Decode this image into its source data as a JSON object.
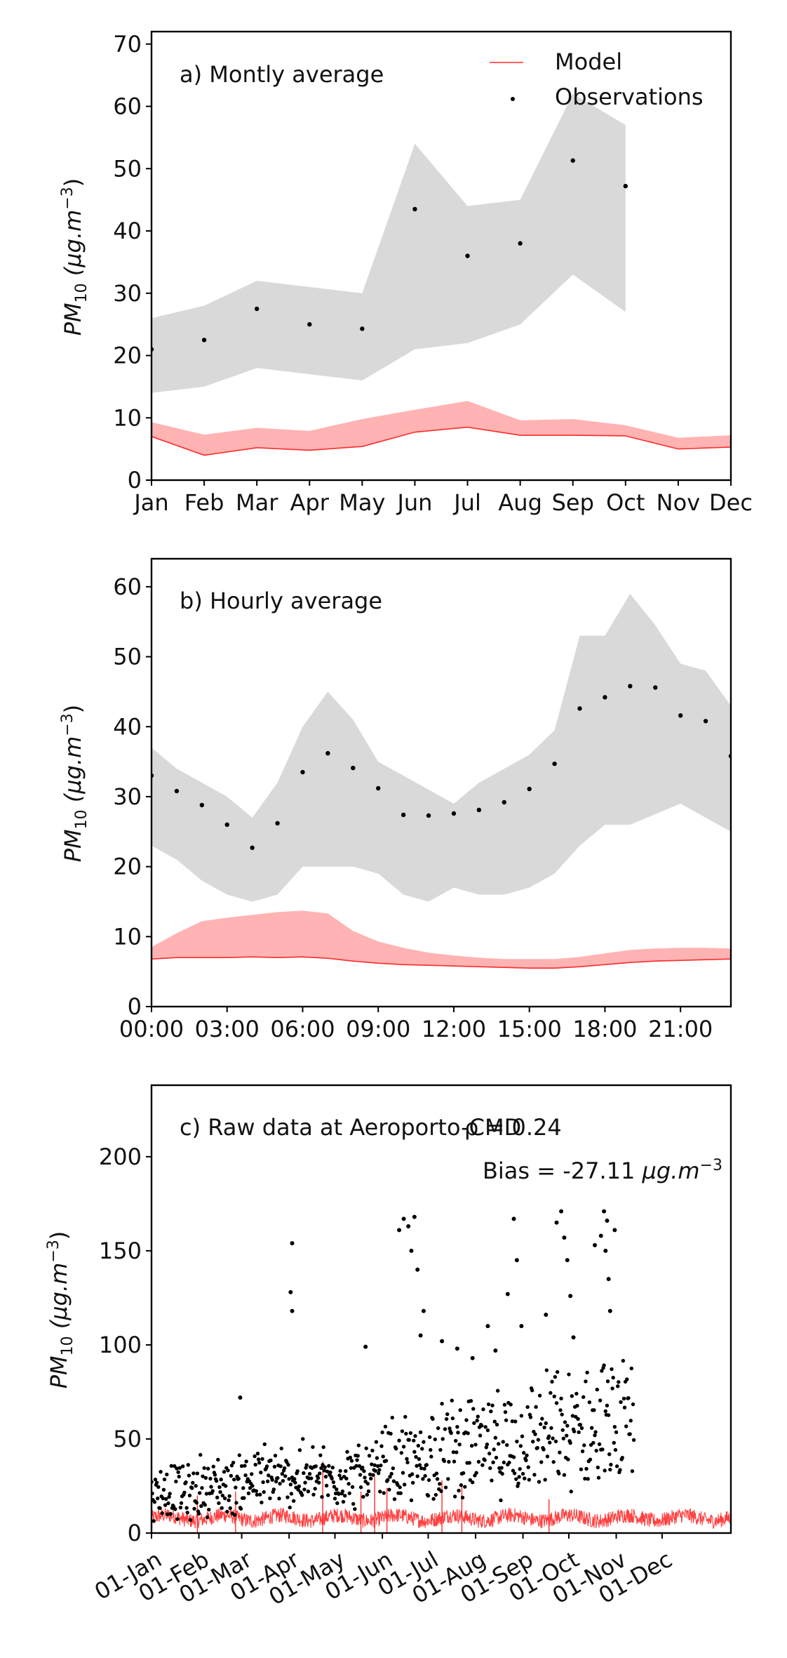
{
  "chart_data": [
    {
      "type": "line",
      "annotation": "a) Montly average",
      "ylabel_main": "PM",
      "ylabel_sub": "10",
      "ylabel_unit": " (µg.m",
      "ylabel_exp": "−3",
      "ylabel_close": ")",
      "xtick_labels": [
        "Jan",
        "Feb",
        "Mar",
        "Apr",
        "May",
        "Jun",
        "Jul",
        "Aug",
        "Sep",
        "Oct",
        "Nov",
        "Dec"
      ],
      "ylim": [
        0,
        72
      ],
      "yticks": [
        0,
        10,
        20,
        30,
        40,
        50,
        60,
        70
      ],
      "legend": {
        "model": "Model",
        "observations": "Observations",
        "placement": "top-right"
      },
      "colors": {
        "model": "#ff2b2b",
        "model_band": "#ffb3b3",
        "obs_band": "#d9d9d9",
        "obs": "#000000"
      },
      "x": [
        0,
        1,
        2,
        3,
        4,
        5,
        6,
        7,
        8,
        9,
        10,
        11
      ],
      "obs_mean": [
        21,
        22.5,
        27.5,
        25,
        24.3,
        43.5,
        36,
        38,
        51.3,
        47.2,
        null,
        null
      ],
      "obs_upper": [
        26,
        28,
        32,
        31,
        30,
        54,
        44,
        45,
        62,
        57,
        null,
        null
      ],
      "obs_lower": [
        14,
        15,
        18,
        17,
        16,
        21,
        22,
        25,
        33,
        27,
        null,
        null
      ],
      "model_mean": [
        7,
        4,
        5.2,
        4.8,
        5.4,
        7.7,
        8.5,
        7.2,
        7.2,
        7.1,
        5,
        5.3
      ],
      "model_upper": [
        9.3,
        7.3,
        8.4,
        7.9,
        9.8,
        11.3,
        12.7,
        9.6,
        9.8,
        8.8,
        6.8,
        7.2
      ]
    },
    {
      "type": "line",
      "annotation": "b) Hourly average",
      "ylabel_main": "PM",
      "ylabel_sub": "10",
      "ylabel_unit": " (µg.m",
      "ylabel_exp": "−3",
      "ylabel_close": ")",
      "xtick_labels": [
        "00:00",
        "03:00",
        "06:00",
        "09:00",
        "12:00",
        "15:00",
        "18:00",
        "21:00"
      ],
      "ylim": [
        0,
        64
      ],
      "yticks": [
        0,
        10,
        20,
        30,
        40,
        50,
        60
      ],
      "x": [
        0,
        1,
        2,
        3,
        4,
        5,
        6,
        7,
        8,
        9,
        10,
        11,
        12,
        13,
        14,
        15,
        16,
        17,
        18,
        19,
        20,
        21,
        22,
        23
      ],
      "obs_mean": [
        33,
        30.8,
        28.8,
        26,
        22.7,
        26.2,
        33.5,
        36.2,
        34.1,
        31.2,
        27.4,
        27.3,
        27.6,
        28.1,
        29.2,
        31.1,
        34.7,
        42.6,
        44.2,
        45.8,
        45.6,
        41.6,
        40.8,
        35.8
      ],
      "obs_upper": [
        37,
        34,
        32,
        30,
        27,
        32,
        40,
        45,
        41,
        35,
        33,
        31,
        29,
        32,
        34,
        36,
        39.5,
        53,
        53,
        59,
        54.5,
        49,
        48,
        43
      ],
      "obs_lower": [
        23,
        21,
        18,
        16,
        15,
        16,
        20,
        20,
        20,
        19,
        16,
        15,
        17,
        16,
        16,
        17,
        19,
        23,
        26,
        26,
        27.5,
        29,
        27,
        25
      ],
      "model_mean": [
        6.8,
        7,
        7,
        7,
        7.1,
        7,
        7.1,
        6.9,
        6.5,
        6.2,
        6,
        5.9,
        5.8,
        5.7,
        5.6,
        5.5,
        5.5,
        5.7,
        6,
        6.3,
        6.5,
        6.6,
        6.7,
        6.8
      ],
      "model_upper": [
        8.5,
        10.5,
        12.2,
        12.7,
        13.1,
        13.5,
        13.7,
        13.3,
        10.8,
        9.3,
        8.4,
        7.7,
        7.3,
        7,
        6.8,
        6.8,
        6.8,
        7.1,
        7.6,
        8.1,
        8.3,
        8.4,
        8.4,
        8.3
      ]
    },
    {
      "type": "scatter",
      "annotation": "c) Raw data at Aeroporto-CMD",
      "rho_text": "ρ = 0.24",
      "bias_prefix": "Bias = -27.11 ",
      "bias_unit": "µg.m",
      "bias_exp": "−3",
      "ylabel_main": "PM",
      "ylabel_sub": "10",
      "ylabel_unit": " (µg.m",
      "ylabel_exp": "−3",
      "ylabel_close": ")",
      "xtick_labels": [
        "01-Jan",
        "01-Feb",
        "01-Mar",
        "01-Apr",
        "01-May",
        "01-Jun",
        "01-Jul",
        "01-Aug",
        "01-Sep",
        "01-Oct",
        "01-Nov",
        "01-Dec"
      ],
      "xtick_days": [
        0,
        31,
        59,
        90,
        120,
        151,
        181,
        212,
        243,
        273,
        304,
        334
      ],
      "xlim_days": [
        0,
        379
      ],
      "ylim": [
        0,
        238
      ],
      "yticks": [
        0,
        50,
        100,
        150,
        200
      ],
      "obs_end_day": 316,
      "monthly_obs_level": [
        18,
        21,
        24,
        25,
        26,
        31,
        38,
        38,
        44,
        47
      ],
      "monthly_obs_spread": [
        22,
        24,
        26,
        26,
        26,
        34,
        40,
        40,
        46,
        48
      ],
      "obs_peaks": [
        {
          "day": 92,
          "value": 154
        },
        {
          "day": 91,
          "value": 128
        },
        {
          "day": 92,
          "value": 118
        },
        {
          "day": 58,
          "value": 72
        },
        {
          "day": 140,
          "value": 99
        },
        {
          "day": 162,
          "value": 161
        },
        {
          "day": 165,
          "value": 167
        },
        {
          "day": 168,
          "value": 163
        },
        {
          "day": 172,
          "value": 168
        },
        {
          "day": 170,
          "value": 150
        },
        {
          "day": 174,
          "value": 140
        },
        {
          "day": 178,
          "value": 118
        },
        {
          "day": 176,
          "value": 105
        },
        {
          "day": 190,
          "value": 102
        },
        {
          "day": 200,
          "value": 98
        },
        {
          "day": 210,
          "value": 93
        },
        {
          "day": 220,
          "value": 110
        },
        {
          "day": 225,
          "value": 97
        },
        {
          "day": 233,
          "value": 127
        },
        {
          "day": 237,
          "value": 167
        },
        {
          "day": 239,
          "value": 145
        },
        {
          "day": 242,
          "value": 110
        },
        {
          "day": 258,
          "value": 116
        },
        {
          "day": 265,
          "value": 165
        },
        {
          "day": 268,
          "value": 171
        },
        {
          "day": 270,
          "value": 157
        },
        {
          "day": 272,
          "value": 145
        },
        {
          "day": 274,
          "value": 126
        },
        {
          "day": 276,
          "value": 104
        },
        {
          "day": 290,
          "value": 153
        },
        {
          "day": 294,
          "value": 158
        },
        {
          "day": 296,
          "value": 171
        },
        {
          "day": 298,
          "value": 166
        },
        {
          "day": 297,
          "value": 150
        },
        {
          "day": 299,
          "value": 135
        },
        {
          "day": 300,
          "value": 118
        },
        {
          "day": 303,
          "value": 161
        }
      ],
      "model_level": 8,
      "model_spikes": [
        {
          "day": 112,
          "value": 38
        },
        {
          "day": 146,
          "value": 30
        },
        {
          "day": 137,
          "value": 22
        },
        {
          "day": 154,
          "value": 24
        },
        {
          "day": 190,
          "value": 28
        },
        {
          "day": 203,
          "value": 26
        },
        {
          "day": 55,
          "value": 22
        },
        {
          "day": 30,
          "value": 20
        },
        {
          "day": 260,
          "value": 18
        }
      ]
    }
  ]
}
